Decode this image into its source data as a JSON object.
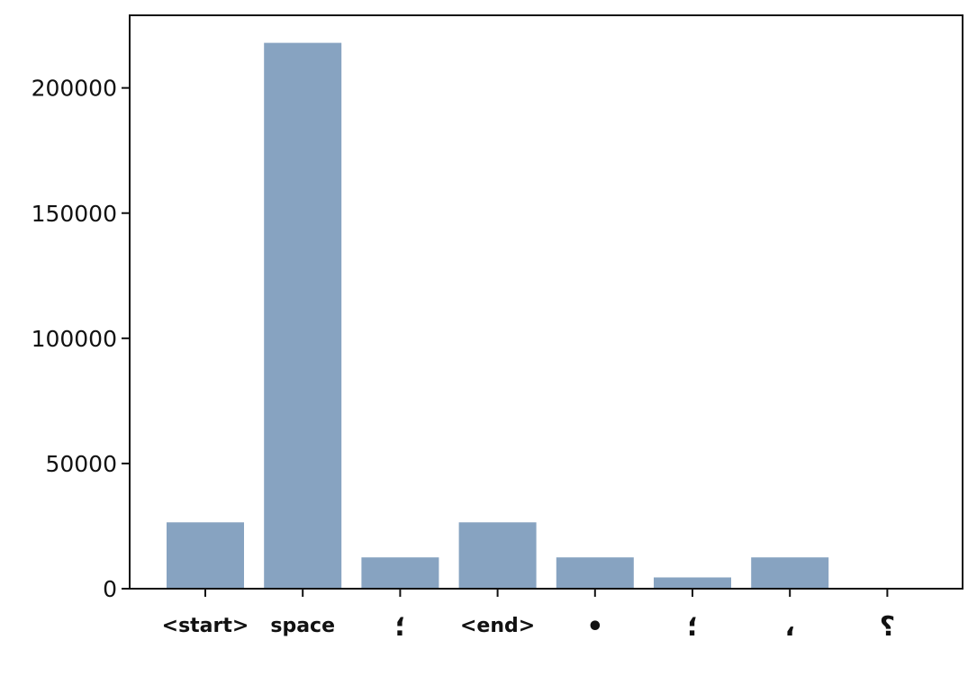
{
  "chart_data": {
    "type": "bar",
    "categories": [
      "<start>",
      "space",
      "؛",
      "<end>",
      "•",
      "؛",
      "،",
      "؟"
    ],
    "values": [
      26500,
      218000,
      12500,
      26500,
      12500,
      4500,
      12500,
      0
    ],
    "title": "",
    "xlabel": "",
    "ylabel": "",
    "ylim": [
      0,
      229000
    ],
    "yticks": [
      0,
      50000,
      100000,
      150000,
      200000
    ],
    "grid": false,
    "legend": "none",
    "bar_color": "#87a3c1"
  }
}
